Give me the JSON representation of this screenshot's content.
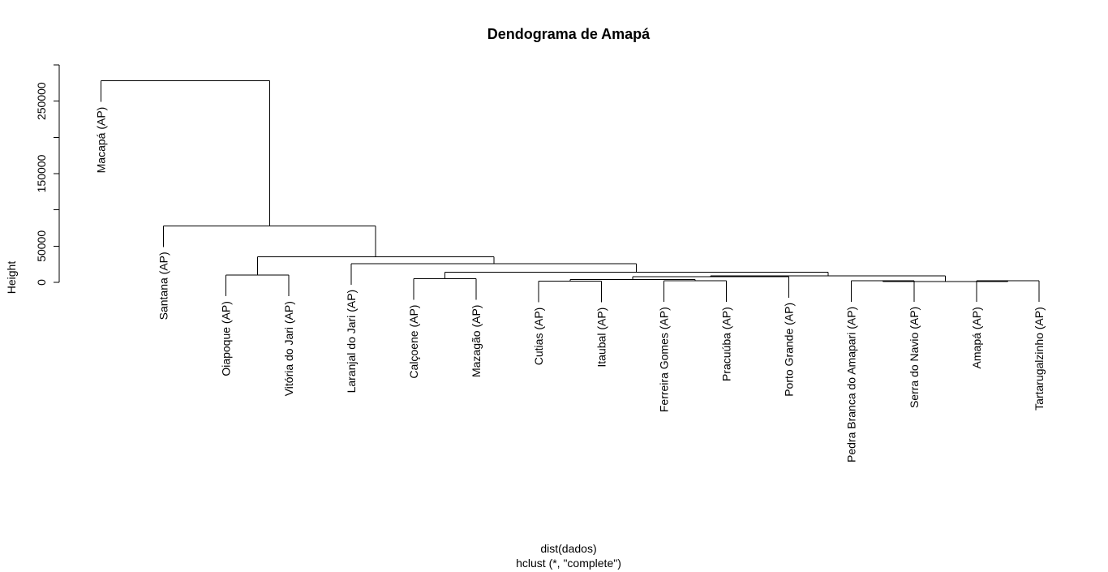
{
  "chart_data": {
    "type": "dendrogram",
    "title": "Dendograma de Amapá",
    "ylabel": "Height",
    "xlabel": "dist(dados)",
    "sub": "hclust (*, \"complete\")",
    "y_ticks": [
      0,
      50000,
      150000,
      250000
    ],
    "ylim": [
      0,
      300000
    ],
    "leaves": [
      "Macapá (AP)",
      "Santana (AP)",
      "Oiapoque (AP)",
      "Vitória do Jari (AP)",
      "Laranjal do Jari (AP)",
      "Calçoene (AP)",
      "Mazagão (AP)",
      "Cutias (AP)",
      "Itaubal (AP)",
      "Ferreira Gomes (AP)",
      "Pracuúba (AP)",
      "Porto Grande (AP)",
      "Pedra Branca do Amapari (AP)",
      "Serra do Navio (AP)",
      "Amapá (AP)",
      "Tartarugalzinho (AP)"
    ],
    "merges": [
      {
        "left": "Cutias (AP)",
        "right": "Itaubal (AP)",
        "height": 1500
      },
      {
        "left": "Ferreira Gomes (AP)",
        "right": "Pracuúba (AP)",
        "height": 2000
      },
      {
        "left": "Amapá (AP)",
        "right": "Tartarugalzinho (AP)",
        "height": 2000
      },
      {
        "left": "Pedra Branca do Amapari (AP)",
        "right": "Serra do Navio (AP)",
        "height": 2500
      },
      {
        "left": "Cutias+Itaubal",
        "right": "FerreiraGomes+Pracuúba",
        "height": 4000
      },
      {
        "left": "Calçoene (AP)",
        "right": "Mazagão (AP)",
        "height": 5000
      },
      {
        "left": "PedraBranca+SerraDoNavio",
        "right": "Amapá+Tartarugalzinho",
        "height": 1000
      },
      {
        "left": "Cutias..Pracuúba",
        "right": "Porto Grande (AP)",
        "height": 8000
      },
      {
        "left": "Oiapoque (AP)",
        "right": "Vitória do Jari (AP)",
        "height": 10000
      },
      {
        "left": "Cutias..PortoGrande",
        "right": "PedraBranca..Tartarugalzinho",
        "height": 9000
      },
      {
        "left": "Calçoene+Mazagão",
        "right": "Cutias..Tartarugalzinho",
        "height": 14000
      },
      {
        "left": "Laranjal do Jari (AP)",
        "right": "Calçoene..Tartarugalzinho",
        "height": 26000
      },
      {
        "left": "Oiapoque+VitóriaDoJari",
        "right": "LaranjalDoJari..Tartarugalzinho",
        "height": 35000
      },
      {
        "left": "Santana (AP)",
        "right": "Oiapoque..Tartarugalzinho",
        "height": 78000
      },
      {
        "left": "Macapá (AP)",
        "right": "Santana..Tartarugalzinho",
        "height": 278000
      }
    ]
  }
}
